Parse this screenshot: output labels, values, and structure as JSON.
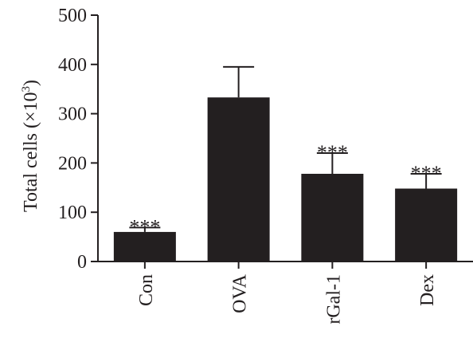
{
  "chart_data": {
    "type": "bar",
    "categories": [
      "Con",
      "OVA",
      "rGal-1",
      "Dex"
    ],
    "values": [
      60,
      333,
      178,
      148
    ],
    "error": [
      9,
      62,
      42,
      30
    ],
    "significance": [
      "***",
      "",
      "***",
      "***"
    ],
    "ylabel": "Total cells (×10³)",
    "ylabel_parts": {
      "main": "Total cells (×10",
      "sup": "3",
      "close": ")"
    },
    "ylim": [
      0,
      500
    ],
    "yticks": [
      0,
      100,
      200,
      300,
      400,
      500
    ],
    "grid": false,
    "bar_color": "#231f20"
  }
}
